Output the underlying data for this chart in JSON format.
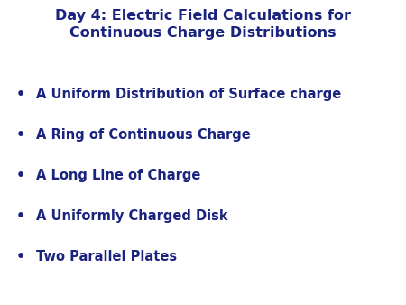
{
  "title_line1": "Day 4: Electric Field Calculations for",
  "title_line2": "Continuous Charge Distributions",
  "bullet_items": [
    "A Uniform Distribution of Surface charge",
    "A Ring of Continuous Charge",
    "A Long Line of Charge",
    "A Uniformly Charged Disk",
    "Two Parallel Plates"
  ],
  "text_color": "#1a237e",
  "background_color": "#ffffff",
  "title_fontsize": 11.5,
  "bullet_fontsize": 10.5,
  "bullet_char": "•"
}
